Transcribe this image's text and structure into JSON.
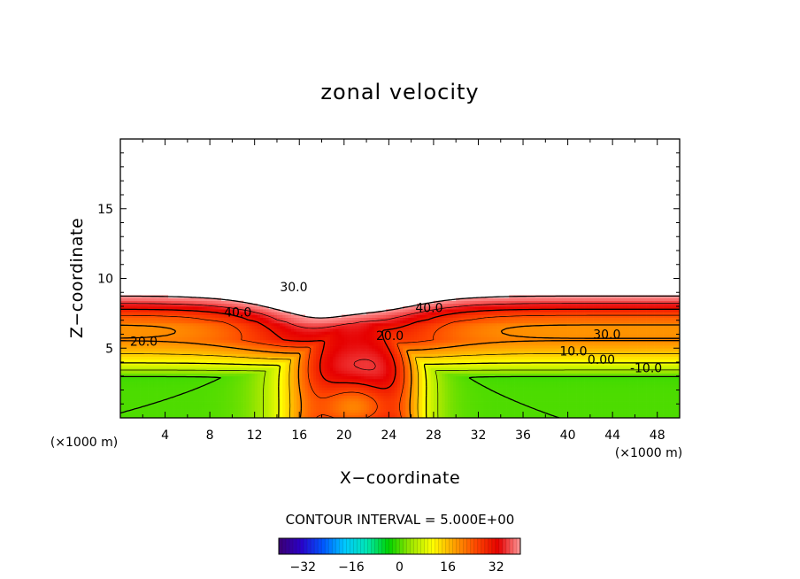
{
  "chart_data": {
    "type": "contour",
    "title": "zonal velocity",
    "xlabel": "X−coordinate",
    "ylabel": "Z−coordinate",
    "x_unit": "(×1000 m)",
    "y_unit": "(×1000 m)",
    "xlim": [
      0,
      50
    ],
    "ylim": [
      0,
      20
    ],
    "x_ticks": [
      4,
      8,
      12,
      16,
      20,
      24,
      28,
      32,
      36,
      40,
      44,
      48
    ],
    "y_ticks": [
      5,
      10,
      15
    ],
    "contour_interval_label": "CONTOUR INTERVAL = 5.000E+00",
    "contour_interval": 5.0,
    "value_range": [
      -40,
      40
    ],
    "contour_labels": [
      {
        "text": "40.0",
        "x": 10.5,
        "z": 7.6
      },
      {
        "text": "30.0",
        "x": 15.5,
        "z": 9.4
      },
      {
        "text": "20.0",
        "x": 2.1,
        "z": 5.5
      },
      {
        "text": "20.0",
        "x": 24.1,
        "z": 5.9
      },
      {
        "text": "40.0",
        "x": 27.6,
        "z": 7.9
      },
      {
        "text": "30.0",
        "x": 43.5,
        "z": 6.0
      },
      {
        "text": "10.0",
        "x": 40.5,
        "z": 4.8
      },
      {
        "text": "0.00",
        "x": 43.0,
        "z": 4.2
      },
      {
        "text": "-10.0",
        "x": 47.0,
        "z": 3.6
      }
    ],
    "colorbar": {
      "ticks": [
        -32,
        -16,
        0,
        16,
        32
      ],
      "tick_labels": [
        "−32",
        "−16",
        "0",
        "16",
        "32"
      ],
      "range": [
        -40,
        40
      ],
      "colormap": "rainbow",
      "colors": [
        "#3d0073",
        "#2a00c8",
        "#0055ff",
        "#00c8ff",
        "#00e6b4",
        "#00d200",
        "#9be600",
        "#ffff00",
        "#ffa000",
        "#ff4600",
        "#e60000",
        "#ff9a9a"
      ]
    }
  }
}
